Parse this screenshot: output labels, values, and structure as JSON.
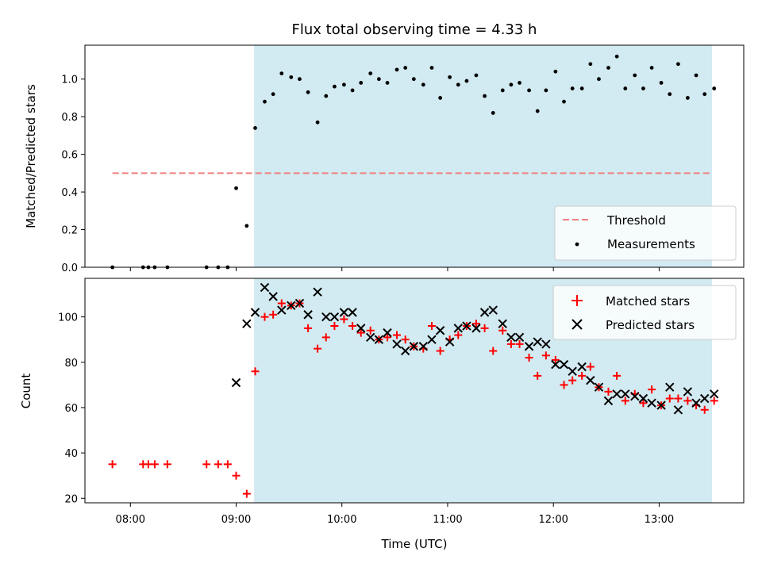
{
  "chart_data": [
    {
      "type": "scatter",
      "title": "Flux total observing time = 4.33 h",
      "xlabel": "",
      "ylabel": "Matched/Predicted stars",
      "ylim": [
        0,
        1.18
      ],
      "yticks": [
        "0.0",
        "0.2",
        "0.4",
        "0.6",
        "0.8",
        "1.0"
      ],
      "shaded_interval_hours": [
        9.17,
        13.5
      ],
      "shade_color": "#add8e6",
      "legend_position": "lower-right",
      "series": [
        {
          "name": "Threshold",
          "style": "dashed-line",
          "color": "#f08080",
          "x": [
            7.83,
            13.5
          ],
          "y": [
            0.5,
            0.5
          ]
        },
        {
          "name": "Measurements",
          "style": "dot",
          "color": "#000000",
          "x": [
            7.83,
            8.12,
            8.17,
            8.23,
            8.35,
            8.72,
            8.83,
            8.92,
            9.0,
            9.1,
            9.18,
            9.27,
            9.35,
            9.43,
            9.52,
            9.6,
            9.68,
            9.77,
            9.85,
            9.93,
            10.02,
            10.1,
            10.18,
            10.27,
            10.35,
            10.43,
            10.52,
            10.6,
            10.68,
            10.77,
            10.85,
            10.93,
            11.02,
            11.1,
            11.18,
            11.27,
            11.35,
            11.43,
            11.52,
            11.6,
            11.68,
            11.77,
            11.85,
            11.93,
            12.02,
            12.1,
            12.18,
            12.27,
            12.35,
            12.43,
            12.52,
            12.6,
            12.68,
            12.77,
            12.85,
            12.93,
            13.02,
            13.1,
            13.18,
            13.27,
            13.35,
            13.43,
            13.52
          ],
          "y": [
            0.0,
            0.0,
            0.0,
            0.0,
            0.0,
            0.0,
            0.0,
            0.0,
            0.42,
            0.22,
            0.74,
            0.88,
            0.92,
            1.03,
            1.01,
            1.0,
            0.93,
            0.77,
            0.91,
            0.96,
            0.97,
            0.94,
            0.98,
            1.03,
            1.0,
            0.98,
            1.05,
            1.06,
            1.0,
            0.97,
            1.06,
            0.9,
            1.01,
            0.97,
            0.99,
            1.02,
            0.91,
            0.82,
            0.94,
            0.97,
            0.98,
            0.94,
            0.83,
            0.94,
            1.04,
            0.88,
            0.95,
            0.95,
            1.08,
            1.0,
            1.06,
            1.12,
            0.95,
            1.02,
            0.95,
            1.06,
            0.98,
            0.92,
            1.08,
            0.9,
            1.02,
            0.92,
            0.95
          ]
        }
      ]
    },
    {
      "type": "scatter",
      "title": "",
      "xlabel": "Time (UTC)",
      "ylabel": "Count",
      "xlim_hours": [
        7.57,
        13.8
      ],
      "ylim": [
        18,
        117
      ],
      "xticks": [
        "08:00",
        "09:00",
        "10:00",
        "11:00",
        "12:00",
        "13:00"
      ],
      "yticks": [
        "20",
        "40",
        "60",
        "80",
        "100"
      ],
      "shaded_interval_hours": [
        9.17,
        13.5
      ],
      "shade_color": "#add8e6",
      "legend_position": "top-right",
      "series": [
        {
          "name": "Matched stars",
          "marker": "+",
          "color": "#ff0000",
          "x": [
            7.83,
            8.12,
            8.17,
            8.23,
            8.35,
            8.72,
            8.83,
            8.92,
            9.0,
            9.1,
            9.18,
            9.27,
            9.35,
            9.43,
            9.52,
            9.6,
            9.68,
            9.77,
            9.85,
            9.93,
            10.02,
            10.1,
            10.18,
            10.27,
            10.35,
            10.43,
            10.52,
            10.6,
            10.68,
            10.77,
            10.85,
            10.93,
            11.02,
            11.1,
            11.18,
            11.27,
            11.35,
            11.43,
            11.52,
            11.6,
            11.68,
            11.77,
            11.85,
            11.93,
            12.02,
            12.1,
            12.18,
            12.27,
            12.35,
            12.43,
            12.52,
            12.6,
            12.68,
            12.77,
            12.85,
            12.93,
            13.02,
            13.1,
            13.18,
            13.27,
            13.35,
            13.43,
            13.52
          ],
          "y": [
            35,
            35,
            35,
            35,
            35,
            35,
            35,
            35,
            30,
            22,
            76,
            100,
            101,
            106,
            105,
            106,
            95,
            86,
            91,
            96,
            99,
            96,
            93,
            94,
            90,
            91,
            92,
            90,
            87,
            86,
            96,
            85,
            90,
            92,
            96,
            97,
            95,
            85,
            94,
            88,
            88,
            82,
            74,
            83,
            81,
            70,
            72,
            74,
            78,
            69,
            67,
            74,
            63,
            66,
            62,
            68,
            61,
            64,
            64,
            63,
            61,
            59,
            63
          ]
        },
        {
          "name": "Predicted stars",
          "marker": "x",
          "color": "#000000",
          "x": [
            9.0,
            9.1,
            9.18,
            9.27,
            9.35,
            9.43,
            9.52,
            9.6,
            9.68,
            9.77,
            9.85,
            9.93,
            10.02,
            10.1,
            10.18,
            10.27,
            10.35,
            10.43,
            10.52,
            10.6,
            10.68,
            10.77,
            10.85,
            10.93,
            11.02,
            11.1,
            11.18,
            11.27,
            11.35,
            11.43,
            11.52,
            11.6,
            11.68,
            11.77,
            11.85,
            11.93,
            12.02,
            12.1,
            12.18,
            12.27,
            12.35,
            12.43,
            12.52,
            12.6,
            12.68,
            12.77,
            12.85,
            12.93,
            13.02,
            13.1,
            13.18,
            13.27,
            13.35,
            13.43,
            13.52
          ],
          "y": [
            71,
            97,
            102,
            113,
            109,
            103,
            105,
            106,
            101,
            111,
            100,
            100,
            102,
            102,
            95,
            91,
            90,
            93,
            88,
            85,
            87,
            87,
            90,
            94,
            89,
            95,
            96,
            95,
            102,
            103,
            97,
            91,
            91,
            87,
            89,
            88,
            79,
            79,
            76,
            78,
            72,
            69,
            63,
            66,
            66,
            65,
            64,
            62,
            61,
            69,
            59,
            67,
            62,
            64,
            66
          ]
        }
      ]
    }
  ]
}
